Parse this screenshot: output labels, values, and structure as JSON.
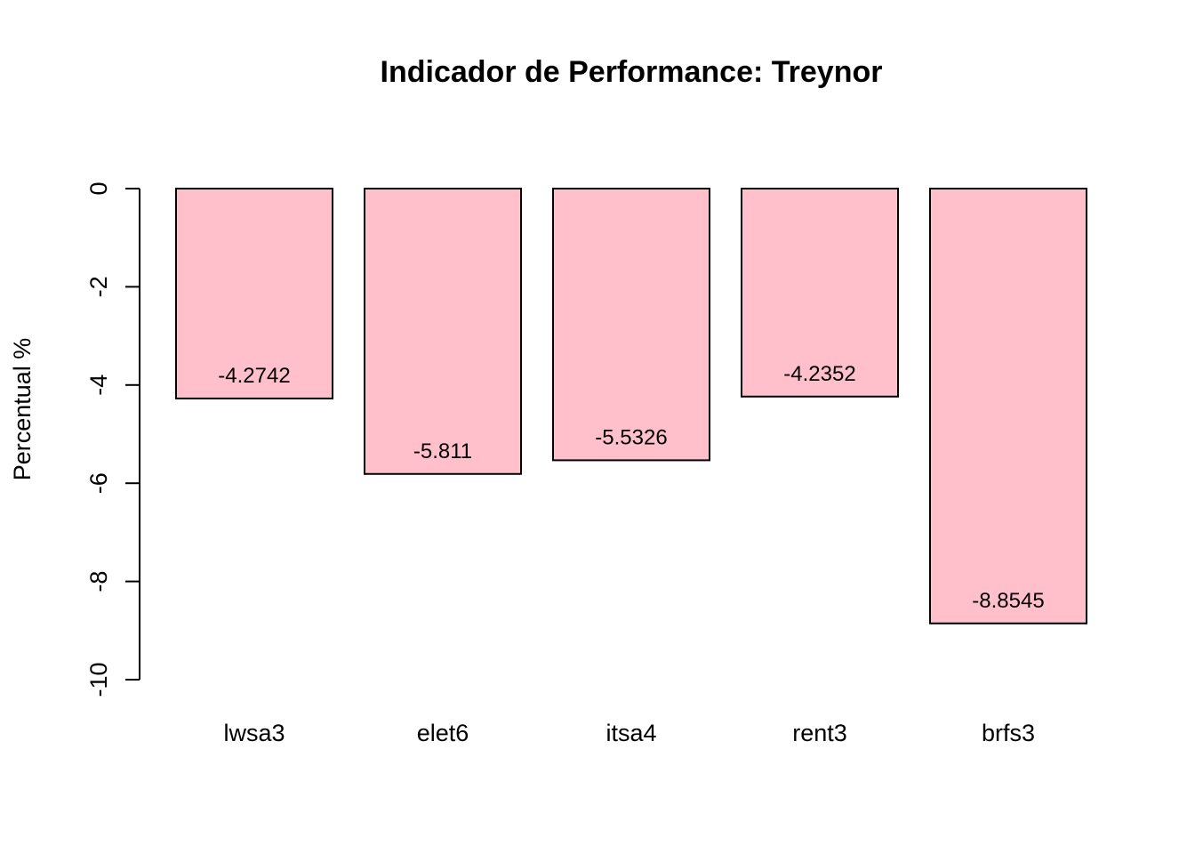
{
  "chart_data": {
    "type": "bar",
    "title": "Indicador de Performance: Treynor",
    "xlabel": "",
    "ylabel": "Percentual %",
    "categories": [
      "lwsa3",
      "elet6",
      "itsa4",
      "rent3",
      "brfs3"
    ],
    "values": [
      -4.2742,
      -5.811,
      -5.5326,
      -4.2352,
      -8.8545
    ],
    "data_labels": [
      "-4.2742",
      "-5.811",
      "-5.5326",
      "-4.2352",
      "-8.8545"
    ],
    "ylim": [
      -10,
      0
    ],
    "yticks": [
      0,
      -2,
      -4,
      -6,
      -8,
      -10
    ],
    "ytick_labels": [
      "0",
      "-2",
      "-4",
      "-6",
      "-8",
      "-10"
    ],
    "bar_color": "#FFC0CB",
    "bar_border_color": "#000000",
    "grid": false,
    "legend": "none"
  }
}
